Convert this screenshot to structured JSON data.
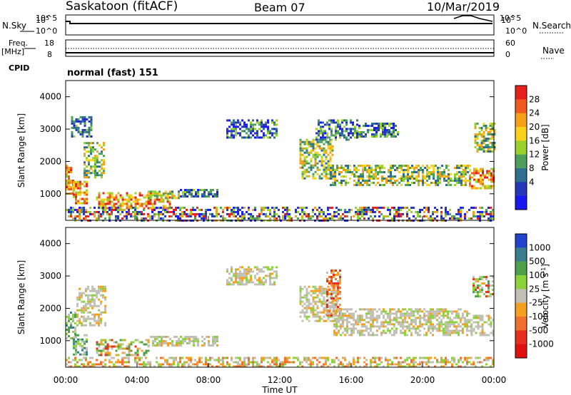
{
  "header": {
    "radar": "Saskatoon (fitACF)",
    "beam": "Beam 07",
    "date": "10/Mar/2019"
  },
  "status_panels": {
    "nsky": {
      "label": "N.Sky",
      "ticks": [
        "10^5",
        "10^0"
      ]
    },
    "nsearch": {
      "label": "N.Search",
      "ticks": [
        "10^5",
        "10^0"
      ]
    },
    "freq": {
      "label_top": "Freq.",
      "label_unit": "[MHz]",
      "ticks": [
        "18",
        "8"
      ]
    },
    "nave": {
      "label": "Nave",
      "ticks": [
        "60",
        "0"
      ]
    },
    "cpid": {
      "label": "CPID",
      "value": "normal (fast) 151"
    }
  },
  "chart_data": [
    {
      "type": "heatmap",
      "title": "",
      "parameter": "Power",
      "ylabel": "Slant Range [km]",
      "ylim": [
        180,
        4500
      ],
      "yticks": [
        1000,
        2000,
        3000,
        4000
      ],
      "xlim": [
        0,
        24
      ],
      "xticks": [
        "00:00",
        "04:00",
        "08:00",
        "12:00",
        "16:00",
        "20:00",
        "00:00"
      ],
      "colorbar": {
        "label": "Power [dB]",
        "ticks": [
          "28",
          "24",
          "20",
          "16",
          "12",
          "8",
          "4"
        ],
        "colors": [
          "#e8201c",
          "#f05a1e",
          "#f5a018",
          "#f8d21c",
          "#9ad02c",
          "#4e9e5c",
          "#2e6e8e",
          "#2438b8",
          "#1818f0"
        ]
      },
      "regions": [
        {
          "t0": 0.0,
          "t1": 0.4,
          "r0": 1000,
          "r1": 1900,
          "level": "high"
        },
        {
          "t0": 0.4,
          "t1": 1.2,
          "r0": 700,
          "r1": 1400,
          "level": "high"
        },
        {
          "t0": 0.3,
          "t1": 1.4,
          "r0": 2800,
          "r1": 3400,
          "level": "low"
        },
        {
          "t0": 1.0,
          "t1": 2.2,
          "r0": 1500,
          "r1": 2600,
          "level": "mid"
        },
        {
          "t0": 1.7,
          "t1": 5.8,
          "r0": 550,
          "r1": 1050,
          "level": "high"
        },
        {
          "t0": 4.6,
          "t1": 6.4,
          "r0": 850,
          "r1": 1100,
          "level": "mid"
        },
        {
          "t0": 6.4,
          "t1": 8.5,
          "r0": 950,
          "r1": 1150,
          "level": "low"
        },
        {
          "t0": 9.0,
          "t1": 11.8,
          "r0": 2750,
          "r1": 3300,
          "level": "low"
        },
        {
          "t0": 13.1,
          "t1": 15.0,
          "r0": 1500,
          "r1": 2700,
          "level": "mid"
        },
        {
          "t0": 14.0,
          "t1": 16.4,
          "r0": 2700,
          "r1": 3300,
          "level": "low"
        },
        {
          "t0": 14.8,
          "t1": 22.7,
          "r0": 1250,
          "r1": 1900,
          "level": "mid"
        },
        {
          "t0": 16.4,
          "t1": 18.6,
          "r0": 2750,
          "r1": 3200,
          "level": "low"
        },
        {
          "t0": 22.6,
          "t1": 24.0,
          "r0": 1150,
          "r1": 1800,
          "level": "high"
        },
        {
          "t0": 22.9,
          "t1": 24.0,
          "r0": 2300,
          "r1": 3200,
          "level": "mid"
        },
        {
          "t0": 0.0,
          "t1": 24.0,
          "r0": 200,
          "r1": 600,
          "level": "mixed"
        }
      ]
    },
    {
      "type": "heatmap",
      "title": "",
      "parameter": "Velocity",
      "ylabel": "Slant Range [km]",
      "xlabel": "Time UT",
      "ylim": [
        180,
        4500
      ],
      "yticks": [
        1000,
        2000,
        3000,
        4000
      ],
      "xlim": [
        0,
        24
      ],
      "xticks": [
        "00:00",
        "04:00",
        "08:00",
        "12:00",
        "16:00",
        "20:00",
        "00:00"
      ],
      "colorbar": {
        "label": "Velocity [m s^-1]",
        "ticks": [
          "1000",
          "500",
          "100",
          "25",
          "-25",
          "-100",
          "-500",
          "-1000"
        ],
        "colors": [
          "#2244cc",
          "#3a7e8e",
          "#4ea04a",
          "#8cd23a",
          "#c0c0b6",
          "#f5a020",
          "#f07030",
          "#e83020",
          "#e01010"
        ]
      },
      "regions": [
        {
          "t0": 0.0,
          "t1": 0.6,
          "r0": 1100,
          "r1": 1900,
          "level": "positive"
        },
        {
          "t0": 0.4,
          "t1": 1.2,
          "r0": 600,
          "r1": 1200,
          "level": "positive"
        },
        {
          "t0": 0.6,
          "t1": 2.2,
          "r0": 1500,
          "r1": 2700,
          "level": "zero"
        },
        {
          "t0": 1.7,
          "t1": 4.6,
          "r0": 550,
          "r1": 1050,
          "level": "mixed"
        },
        {
          "t0": 4.6,
          "t1": 8.5,
          "r0": 850,
          "r1": 1150,
          "level": "zero"
        },
        {
          "t0": 9.0,
          "t1": 11.8,
          "r0": 2750,
          "r1": 3300,
          "level": "zero"
        },
        {
          "t0": 13.1,
          "t1": 15.2,
          "r0": 1600,
          "r1": 2700,
          "level": "zero"
        },
        {
          "t0": 14.6,
          "t1": 15.4,
          "r0": 1800,
          "r1": 3200,
          "level": "negative"
        },
        {
          "t0": 15.0,
          "t1": 22.7,
          "r0": 1200,
          "r1": 2000,
          "level": "zero"
        },
        {
          "t0": 22.7,
          "t1": 24.0,
          "r0": 1150,
          "r1": 1800,
          "level": "zero"
        },
        {
          "t0": 22.8,
          "t1": 24.0,
          "r0": 2400,
          "r1": 3000,
          "level": "mixed"
        },
        {
          "t0": 0.0,
          "t1": 24.0,
          "r0": 200,
          "r1": 500,
          "level": "ground"
        }
      ]
    }
  ]
}
